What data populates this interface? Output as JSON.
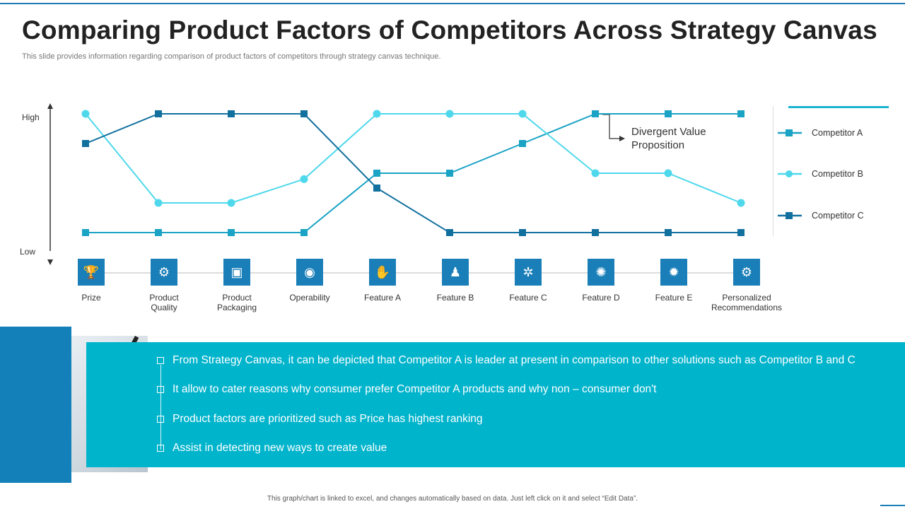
{
  "title": "Comparing Product Factors of Competitors Across Strategy Canvas",
  "subtitle": "This slide provides information regarding comparison of product factors of competitors through strategy canvas technique.",
  "axis": {
    "high_label": "High",
    "low_label": "Low"
  },
  "annotation": {
    "line1": "Divergent Value",
    "line2": "Proposition"
  },
  "factors": [
    {
      "label_line1": "Prize",
      "label_line2": "",
      "icon": "trophy-icon",
      "glyph": "🏆"
    },
    {
      "label_line1": "Product",
      "label_line2": "Quality",
      "icon": "quality-badge-icon",
      "glyph": "⚙"
    },
    {
      "label_line1": "Product",
      "label_line2": "Packaging",
      "icon": "box-icon",
      "glyph": "▣"
    },
    {
      "label_line1": "Operability",
      "label_line2": "",
      "icon": "globe-icon",
      "glyph": "◉"
    },
    {
      "label_line1": "Feature A",
      "label_line2": "",
      "icon": "hand-coin-icon",
      "glyph": "✋"
    },
    {
      "label_line1": "Feature B",
      "label_line2": "",
      "icon": "presenter-icon",
      "glyph": "♟"
    },
    {
      "label_line1": "Feature C",
      "label_line2": "",
      "icon": "gear-cycle-icon",
      "glyph": "✲"
    },
    {
      "label_line1": "Feature D",
      "label_line2": "",
      "icon": "lightbulb-icon",
      "glyph": "✺"
    },
    {
      "label_line1": "Feature E",
      "label_line2": "",
      "icon": "settings-icon",
      "glyph": "✹"
    },
    {
      "label_line1": "Personalized",
      "label_line2": "Recommendations",
      "icon": "browser-gear-icon",
      "glyph": "⚙"
    }
  ],
  "chart_data": {
    "type": "line",
    "title": "Strategy Canvas",
    "categories": [
      "Prize",
      "Product Quality",
      "Product Packaging",
      "Operability",
      "Feature A",
      "Feature B",
      "Feature C",
      "Feature D",
      "Feature E",
      "Personalized Recommendations"
    ],
    "ylabel_high": "High",
    "ylabel_low": "Low",
    "ylim": [
      0,
      4
    ],
    "legend_position": "right",
    "series": [
      {
        "name": "Competitor A",
        "color": "#1aa3c4",
        "marker": "square",
        "values": [
          0,
          0,
          0,
          0,
          2,
          2,
          3,
          4,
          4,
          4
        ]
      },
      {
        "name": "Competitor B",
        "color": "#4fd8ec",
        "marker": "circle",
        "values": [
          4,
          1,
          1,
          1.8,
          4,
          4,
          4,
          2,
          2,
          1
        ]
      },
      {
        "name": "Competitor C",
        "color": "#12709f",
        "marker": "square",
        "values": [
          3,
          4,
          4,
          4,
          1.5,
          0,
          0,
          0,
          0,
          0
        ]
      }
    ]
  },
  "legend": [
    {
      "label": "Competitor A"
    },
    {
      "label": "Competitor B"
    },
    {
      "label": "Competitor C"
    }
  ],
  "bullets": [
    "From Strategy Canvas, it can be depicted that Competitor A is leader at present in comparison to other solutions such as Competitor B and C",
    "It allow to cater reasons why consumer prefer Competitor A products and why non – consumer don't",
    "Product factors are prioritized such as Price has highest ranking",
    "Assist in detecting new ways to create value"
  ],
  "footer": "This graph/chart is linked to excel, and changes automatically based on data. Just left click on it and select “Edit Data”."
}
